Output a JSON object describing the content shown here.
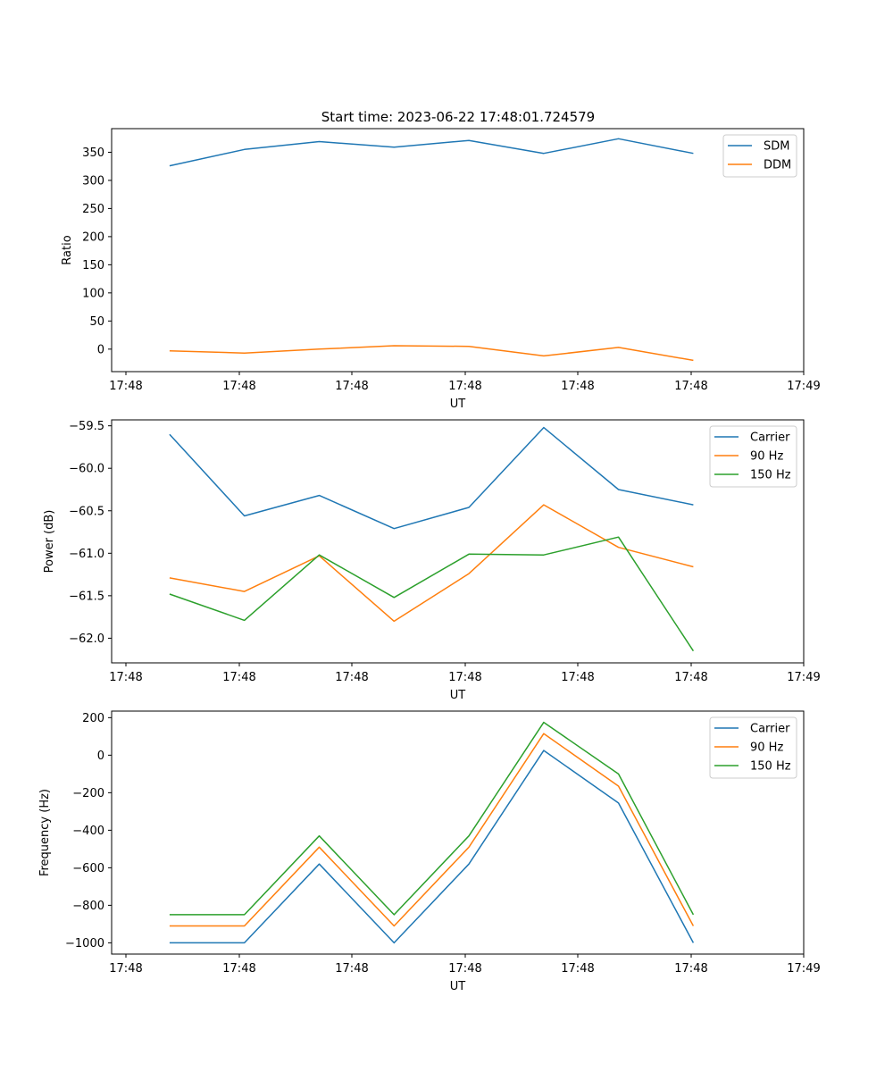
{
  "figure": {
    "title": "Start time: 2023-06-22 17:48:01.724579"
  },
  "chart_data": [
    {
      "type": "line",
      "ylabel": "Ratio",
      "xlabel": "UT",
      "x_tick_labels": [
        "17:48",
        "17:48",
        "17:48",
        "17:48",
        "17:48",
        "17:48",
        "17:49"
      ],
      "ylim": [
        -40,
        392
      ],
      "yticks": [
        0,
        50,
        100,
        150,
        200,
        250,
        300,
        350
      ],
      "x": [
        1,
        2,
        3,
        4,
        5,
        6,
        7,
        8
      ],
      "series": [
        {
          "name": "SDM",
          "color": "#1f77b4",
          "values": [
            326,
            355,
            369,
            359,
            371,
            348,
            374,
            348
          ]
        },
        {
          "name": "DDM",
          "color": "#ff7f0e",
          "values": [
            -3,
            -7,
            0,
            6,
            5,
            -12,
            3,
            -20
          ]
        }
      ],
      "legend": "top-right",
      "grid": false
    },
    {
      "type": "line",
      "ylabel": "Power (dB)",
      "xlabel": "UT",
      "x_tick_labels": [
        "17:48",
        "17:48",
        "17:48",
        "17:48",
        "17:48",
        "17:48",
        "17:49"
      ],
      "ylim": [
        -62.29,
        -59.43
      ],
      "yticks": [
        -62.0,
        -61.5,
        -61.0,
        -60.5,
        -60.0,
        -59.5
      ],
      "ytick_labels": [
        "−62.0",
        "−61.5",
        "−61.0",
        "−60.5",
        "−60.0",
        "−59.5"
      ],
      "x": [
        1,
        2,
        3,
        4,
        5,
        6,
        7,
        8
      ],
      "series": [
        {
          "name": "Carrier",
          "color": "#1f77b4",
          "values": [
            -59.6,
            -60.56,
            -60.32,
            -60.71,
            -60.46,
            -59.52,
            -60.25,
            -60.43
          ]
        },
        {
          "name": "90 Hz",
          "color": "#ff7f0e",
          "values": [
            -61.29,
            -61.45,
            -61.03,
            -61.8,
            -61.24,
            -60.43,
            -60.93,
            -61.16
          ]
        },
        {
          "name": "150 Hz",
          "color": "#2ca02c",
          "values": [
            -61.48,
            -61.79,
            -61.02,
            -61.52,
            -61.01,
            -61.02,
            -60.81,
            -62.15
          ]
        }
      ],
      "legend": "top-right",
      "grid": false
    },
    {
      "type": "line",
      "ylabel": "Frequency (Hz)",
      "xlabel": "UT",
      "x_tick_labels": [
        "17:48",
        "17:48",
        "17:48",
        "17:48",
        "17:48",
        "17:48",
        "17:49"
      ],
      "ylim": [
        -1060,
        235
      ],
      "yticks": [
        -1000,
        -800,
        -600,
        -400,
        -200,
        0,
        200
      ],
      "ytick_labels": [
        "−1000",
        "−800",
        "−600",
        "−400",
        "−200",
        "0",
        "200"
      ],
      "x": [
        1,
        2,
        3,
        4,
        5,
        6,
        7,
        8
      ],
      "series": [
        {
          "name": "Carrier",
          "color": "#1f77b4",
          "values": [
            -1000,
            -1000,
            -580,
            -1000,
            -580,
            25,
            -255,
            -1000
          ]
        },
        {
          "name": "90 Hz",
          "color": "#ff7f0e",
          "values": [
            -910,
            -910,
            -490,
            -910,
            -490,
            115,
            -165,
            -910
          ]
        },
        {
          "name": "150 Hz",
          "color": "#2ca02c",
          "values": [
            -850,
            -850,
            -430,
            -850,
            -430,
            175,
            -100,
            -850
          ]
        }
      ],
      "legend": "top-right",
      "grid": false
    }
  ]
}
